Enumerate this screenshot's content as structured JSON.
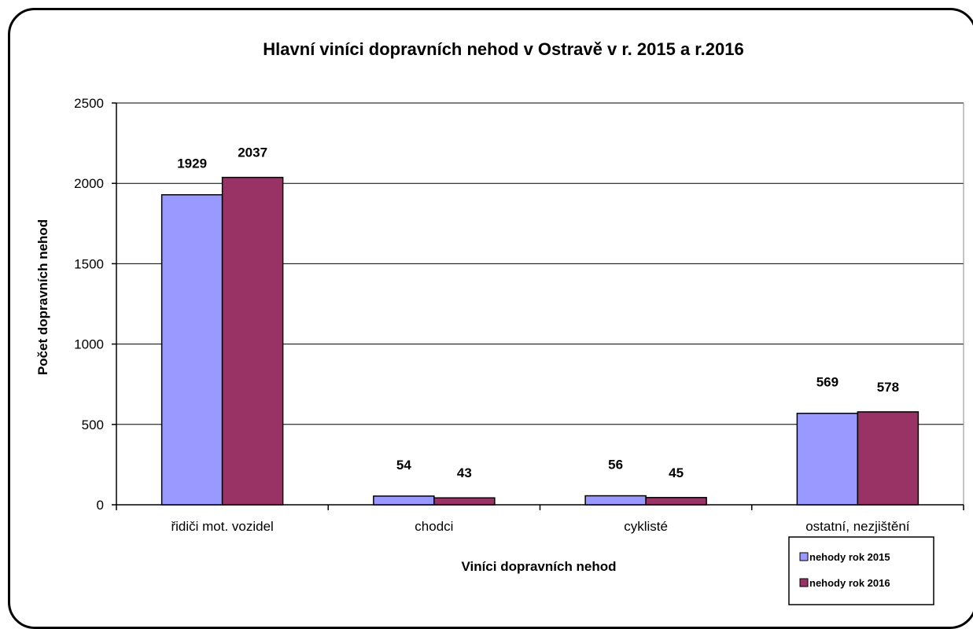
{
  "chart_data": {
    "type": "bar",
    "title": "Hlavní viníci dopravních nehod v Ostravě v r. 2015 a r.2016",
    "xlabel": "Viníci dopravních nehod",
    "ylabel": "Počet dopravních nehod",
    "categories": [
      "řidiči mot. vozidel",
      "chodci",
      "cyklisté",
      "ostatní, nezjištění"
    ],
    "series": [
      {
        "name": "nehody rok 2015",
        "values": [
          1929,
          54,
          56,
          569
        ],
        "color": "#9999ff"
      },
      {
        "name": "nehody rok 2016",
        "values": [
          2037,
          43,
          45,
          578
        ],
        "color": "#993366"
      }
    ],
    "ylim": [
      0,
      2500
    ],
    "yticks": [
      0,
      500,
      1000,
      1500,
      2000,
      2500
    ],
    "grid": true,
    "legend": "bottom-right"
  }
}
